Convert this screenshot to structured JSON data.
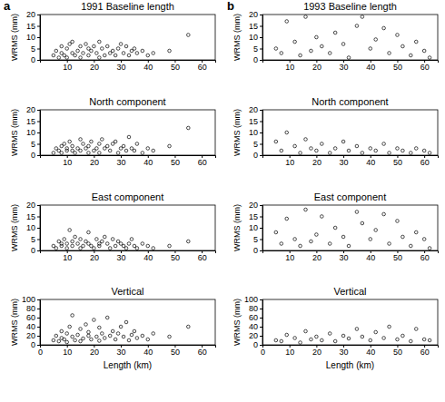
{
  "chart_data": [
    {
      "type": "scatter",
      "title": "1991 Baseline length",
      "annotations": [
        "a"
      ],
      "y_label": "WRMS (mm)",
      "marker": "circle",
      "color": "#000000",
      "x": [
        5,
        6,
        7,
        8,
        8,
        9,
        10,
        10,
        11,
        12,
        12,
        13,
        14,
        15,
        15,
        16,
        17,
        18,
        18,
        19,
        20,
        21,
        22,
        22,
        23,
        24,
        25,
        26,
        27,
        28,
        29,
        30,
        31,
        32,
        33,
        34,
        35,
        36,
        38,
        40,
        42,
        48,
        55
      ],
      "values": [
        2,
        4,
        1,
        3,
        6,
        2,
        5,
        1,
        7,
        3,
        8,
        2,
        4,
        6,
        1,
        3,
        7,
        2,
        5,
        4,
        6,
        3,
        1,
        8,
        5,
        2,
        6,
        3,
        4,
        2,
        5,
        7,
        3,
        6,
        2,
        4,
        5,
        3,
        4,
        2,
        3,
        4,
        11
      ],
      "xlim": [
        0,
        65
      ],
      "xticks": [
        10,
        20,
        30,
        40,
        50,
        60
      ],
      "ylim": [
        0,
        20
      ],
      "yticks": [
        0,
        5,
        10,
        15,
        20
      ]
    },
    {
      "type": "scatter",
      "title": "North component",
      "y_label": "WRMS (mm)",
      "marker": "circle",
      "color": "#000000",
      "x": [
        5,
        6,
        7,
        8,
        8,
        9,
        10,
        10,
        11,
        12,
        12,
        13,
        14,
        15,
        15,
        16,
        17,
        18,
        18,
        19,
        20,
        21,
        22,
        22,
        23,
        24,
        25,
        26,
        27,
        28,
        29,
        30,
        31,
        32,
        33,
        34,
        35,
        36,
        38,
        40,
        42,
        48,
        55
      ],
      "values": [
        1,
        3,
        2,
        4,
        1,
        5,
        2,
        3,
        6,
        2,
        4,
        1,
        3,
        7,
        2,
        5,
        3,
        1,
        4,
        6,
        2,
        3,
        5,
        1,
        7,
        3,
        4,
        2,
        5,
        6,
        1,
        3,
        4,
        2,
        8,
        3,
        2,
        5,
        1,
        3,
        2,
        4,
        12
      ],
      "xlim": [
        0,
        65
      ],
      "xticks": [
        10,
        20,
        30,
        40,
        50,
        60
      ],
      "ylim": [
        0,
        20
      ],
      "yticks": [
        0,
        5,
        10,
        15,
        20
      ]
    },
    {
      "type": "scatter",
      "title": "East component",
      "y_label": "WRMS (mm)",
      "marker": "circle",
      "color": "#000000",
      "x": [
        5,
        6,
        7,
        8,
        8,
        9,
        10,
        10,
        11,
        12,
        12,
        13,
        14,
        15,
        15,
        16,
        17,
        18,
        18,
        19,
        20,
        21,
        22,
        22,
        23,
        24,
        25,
        26,
        27,
        28,
        29,
        30,
        31,
        32,
        33,
        34,
        35,
        36,
        38,
        40,
        42,
        48,
        55
      ],
      "values": [
        2,
        1,
        4,
        3,
        2,
        5,
        1,
        3,
        9,
        2,
        4,
        6,
        3,
        1,
        5,
        2,
        4,
        3,
        8,
        2,
        1,
        5,
        3,
        2,
        4,
        6,
        3,
        1,
        5,
        2,
        4,
        3,
        2,
        1,
        3,
        5,
        2,
        1,
        3,
        2,
        1,
        2,
        4
      ],
      "xlim": [
        0,
        65
      ],
      "xticks": [
        10,
        20,
        30,
        40,
        50,
        60
      ],
      "ylim": [
        0,
        20
      ],
      "yticks": [
        0,
        5,
        10,
        15,
        20
      ]
    },
    {
      "type": "scatter",
      "title": "Vertical",
      "y_label": "WRMS (mm)",
      "x_label": "Length (km)",
      "marker": "circle",
      "color": "#000000",
      "x": [
        5,
        6,
        7,
        8,
        8,
        9,
        10,
        10,
        11,
        12,
        12,
        13,
        14,
        15,
        15,
        16,
        17,
        18,
        18,
        19,
        20,
        21,
        22,
        22,
        23,
        24,
        25,
        26,
        27,
        28,
        29,
        30,
        31,
        32,
        33,
        34,
        35,
        36,
        38,
        40,
        42,
        48,
        55
      ],
      "values": [
        10,
        20,
        8,
        15,
        30,
        12,
        25,
        6,
        40,
        18,
        65,
        10,
        22,
        35,
        8,
        14,
        45,
        20,
        28,
        12,
        55,
        18,
        9,
        38,
        25,
        15,
        60,
        20,
        30,
        12,
        25,
        40,
        18,
        50,
        10,
        22,
        30,
        15,
        20,
        12,
        25,
        18,
        40
      ],
      "xlim": [
        0,
        65
      ],
      "xticks": [
        0,
        10,
        20,
        30,
        40,
        50,
        60
      ],
      "ylim": [
        0,
        100
      ],
      "yticks": [
        0,
        20,
        40,
        60,
        80,
        100
      ]
    },
    {
      "type": "scatter",
      "title": "1993 Baseline length",
      "annotations": [
        "b"
      ],
      "y_label": "WRMS (mm)",
      "marker": "circle",
      "color": "#000000",
      "x": [
        5,
        7,
        9,
        12,
        14,
        16,
        18,
        20,
        22,
        25,
        27,
        30,
        32,
        35,
        37,
        40,
        42,
        45,
        47,
        50,
        52,
        55,
        57,
        60,
        62
      ],
      "values": [
        5,
        3,
        17,
        8,
        2,
        19,
        4,
        10,
        6,
        3,
        12,
        7,
        1,
        15,
        19,
        5,
        9,
        14,
        3,
        11,
        6,
        2,
        8,
        4,
        1
      ],
      "xlim": [
        0,
        65
      ],
      "xticks": [
        10,
        20,
        30,
        40,
        50,
        60
      ],
      "ylim": [
        0,
        20
      ],
      "yticks": [
        0,
        5,
        10,
        15,
        20
      ]
    },
    {
      "type": "scatter",
      "title": "North component",
      "y_label": "WRMS (mm)",
      "marker": "circle",
      "color": "#000000",
      "x": [
        5,
        7,
        9,
        12,
        14,
        16,
        18,
        20,
        22,
        25,
        27,
        30,
        32,
        35,
        37,
        40,
        42,
        45,
        47,
        50,
        52,
        55,
        57,
        60,
        62
      ],
      "values": [
        6,
        2,
        10,
        4,
        1,
        7,
        3,
        2,
        5,
        1,
        3,
        6,
        2,
        4,
        1,
        3,
        2,
        5,
        1,
        3,
        2,
        1,
        3,
        2,
        1
      ],
      "xlim": [
        0,
        65
      ],
      "xticks": [
        10,
        20,
        30,
        40,
        50,
        60
      ],
      "ylim": [
        0,
        20
      ],
      "yticks": [
        0,
        5,
        10,
        15,
        20
      ]
    },
    {
      "type": "scatter",
      "title": "East component",
      "y_label": "WRMS (mm)",
      "marker": "circle",
      "color": "#000000",
      "x": [
        5,
        7,
        9,
        12,
        14,
        16,
        18,
        20,
        22,
        25,
        27,
        30,
        32,
        35,
        37,
        40,
        42,
        45,
        47,
        50,
        52,
        55,
        57,
        60,
        62
      ],
      "values": [
        8,
        3,
        14,
        5,
        2,
        18,
        4,
        7,
        15,
        3,
        10,
        6,
        2,
        17,
        12,
        5,
        9,
        16,
        3,
        13,
        6,
        2,
        8,
        5,
        1
      ],
      "xlim": [
        0,
        65
      ],
      "xticks": [
        10,
        20,
        30,
        40,
        50,
        60
      ],
      "ylim": [
        0,
        20
      ],
      "yticks": [
        0,
        5,
        10,
        15,
        20
      ]
    },
    {
      "type": "scatter",
      "title": "Vertical",
      "y_label": "WRMS (mm)",
      "x_label": "Length (km)",
      "marker": "circle",
      "color": "#000000",
      "x": [
        5,
        7,
        9,
        12,
        14,
        16,
        18,
        20,
        22,
        25,
        27,
        30,
        32,
        35,
        37,
        40,
        42,
        45,
        47,
        50,
        52,
        55,
        57,
        60,
        62
      ],
      "values": [
        10,
        8,
        22,
        15,
        5,
        30,
        12,
        18,
        10,
        25,
        8,
        20,
        14,
        35,
        18,
        10,
        28,
        15,
        40,
        12,
        20,
        8,
        35,
        12,
        10
      ],
      "xlim": [
        0,
        65
      ],
      "xticks": [
        0,
        10,
        20,
        30,
        40,
        50,
        60
      ],
      "ylim": [
        0,
        100
      ],
      "yticks": [
        0,
        20,
        40,
        60,
        80,
        100
      ]
    }
  ]
}
